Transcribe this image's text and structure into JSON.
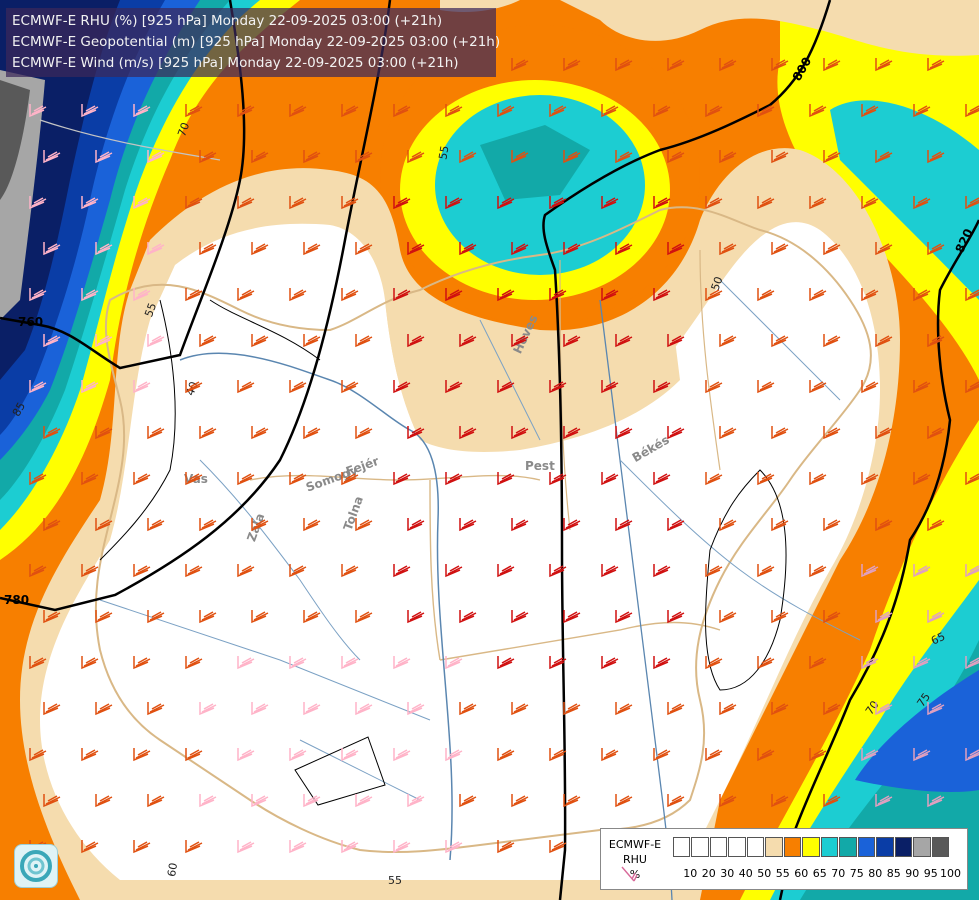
{
  "header": {
    "line1": "ECMWF-E RHU (%) [925 hPa] Monday 22-09-2025 03:00 (+21h)",
    "line2": "ECMWF-E Geopotential (m) [925 hPa] Monday 22-09-2025 03:00 (+21h)",
    "line3": "ECMWF-E Wind (m/s) [925 hPa] Monday 22-09-2025 03:00 (+21h)"
  },
  "legend": {
    "model": "ECMWF-E",
    "variable": "RHU",
    "unit": "%",
    "ticks": [
      "10",
      "20",
      "30",
      "40",
      "50",
      "55",
      "60",
      "65",
      "70",
      "75",
      "80",
      "85",
      "90",
      "95",
      "100"
    ],
    "colors": [
      "#ffffff",
      "#ffffff",
      "#ffffff",
      "#ffffff",
      "#ffffff",
      "#f5dcae",
      "#f77f00",
      "#ffff00",
      "#1ccdd2",
      "#12a9a8",
      "#1a62d9",
      "#0a3da6",
      "#0a1f66",
      "#a6a6a6",
      "#595959"
    ]
  },
  "contours": {
    "geopotential": [
      "760",
      "780",
      "800",
      "820"
    ],
    "rhu": [
      "40",
      "50",
      "55",
      "55",
      "55",
      "60",
      "65",
      "70",
      "70",
      "75",
      "85"
    ]
  },
  "regions": [
    "Vas",
    "Zala",
    "Somogy",
    "Tolna",
    "Fejér",
    "Pest",
    "Heves",
    "Békés"
  ]
}
